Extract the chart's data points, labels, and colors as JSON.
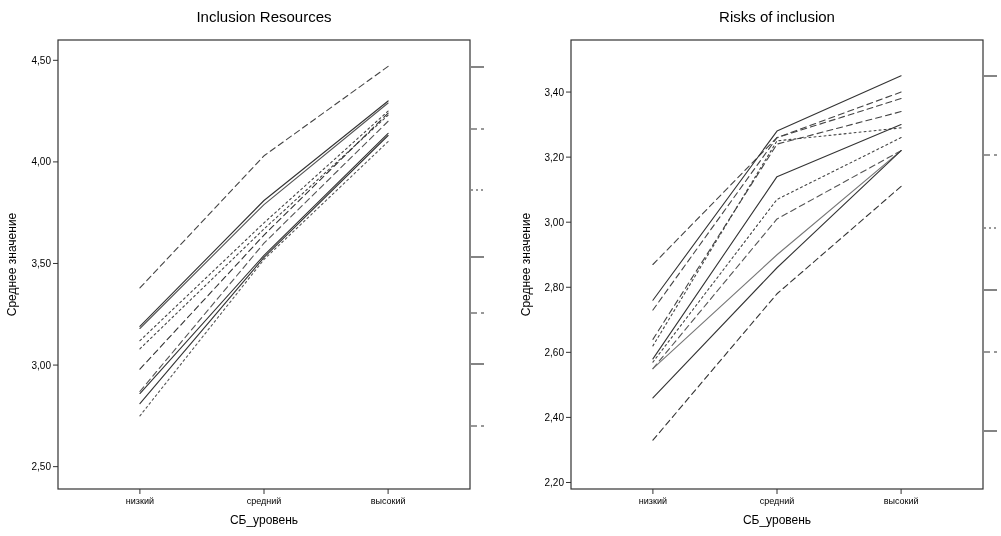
{
  "chart_data": [
    {
      "type": "line",
      "title": "Inclusion Resources",
      "xlabel": "СБ_уровень",
      "ylabel": "Среднее значение",
      "categories": [
        "низкий",
        "средний",
        "высокий"
      ],
      "ylim": [
        2.39,
        4.6
      ],
      "yticks": [
        {
          "value": 2.5,
          "label": "2,50"
        },
        {
          "value": 3.0,
          "label": "3,00"
        },
        {
          "value": 3.5,
          "label": "3,50"
        },
        {
          "value": 4.0,
          "label": "4,00"
        },
        {
          "value": 4.5,
          "label": "4,50"
        }
      ],
      "grid": false,
      "series": [
        {
          "color": "#444444",
          "line_style": "dashed",
          "values": [
            3.38,
            4.03,
            4.47
          ]
        },
        {
          "color": "#333333",
          "line_style": "solid",
          "values": [
            3.19,
            3.81,
            4.3
          ]
        },
        {
          "color": "#555555",
          "line_style": "solid",
          "values": [
            3.18,
            3.79,
            4.29
          ]
        },
        {
          "color": "#444444",
          "line_style": "dotted",
          "values": [
            3.12,
            3.7,
            4.25
          ]
        },
        {
          "color": "#444444",
          "line_style": "dotted",
          "values": [
            3.08,
            3.67,
            4.23
          ]
        },
        {
          "color": "#333333",
          "line_style": "dashed",
          "values": [
            2.98,
            3.64,
            4.24
          ]
        },
        {
          "color": "#555555",
          "line_style": "dashed",
          "values": [
            2.87,
            3.6,
            4.2
          ]
        },
        {
          "color": "#333333",
          "line_style": "solid",
          "values": [
            2.86,
            3.54,
            4.14
          ]
        },
        {
          "color": "#333333",
          "line_style": "solid",
          "values": [
            2.81,
            3.53,
            4.13
          ]
        },
        {
          "color": "#555555",
          "line_style": "dotted",
          "values": [
            2.75,
            3.52,
            4.1
          ]
        }
      ]
    },
    {
      "type": "line",
      "title": "Risks of inclusion",
      "xlabel": "СБ_уровень",
      "ylabel": "Среднее значение",
      "categories": [
        "низкий",
        "средний",
        "высокий"
      ],
      "ylim": [
        2.18,
        3.56
      ],
      "yticks": [
        {
          "value": 2.2,
          "label": "2,20"
        },
        {
          "value": 2.4,
          "label": "2,40"
        },
        {
          "value": 2.6,
          "label": "2,60"
        },
        {
          "value": 2.8,
          "label": "2,80"
        },
        {
          "value": 3.0,
          "label": "3,00"
        },
        {
          "value": 3.2,
          "label": "3,20"
        },
        {
          "value": 3.4,
          "label": "3,40"
        }
      ],
      "grid": false,
      "series": [
        {
          "color": "#444444",
          "line_style": "dashed",
          "values": [
            2.87,
            3.26,
            3.4
          ]
        },
        {
          "color": "#333333",
          "line_style": "solid",
          "values": [
            2.76,
            3.28,
            3.45
          ]
        },
        {
          "color": "#444444",
          "line_style": "dashed",
          "values": [
            2.73,
            3.26,
            3.38
          ]
        },
        {
          "color": "#444444",
          "line_style": "dashed",
          "values": [
            2.64,
            3.24,
            3.34
          ]
        },
        {
          "color": "#444444",
          "line_style": "dotted",
          "values": [
            2.62,
            3.25,
            3.29
          ]
        },
        {
          "color": "#333333",
          "line_style": "solid",
          "values": [
            2.58,
            3.14,
            3.3
          ]
        },
        {
          "color": "#444444",
          "line_style": "dotted",
          "values": [
            2.57,
            3.07,
            3.26
          ]
        },
        {
          "color": "#555555",
          "line_style": "dashed",
          "values": [
            2.55,
            3.01,
            3.22
          ]
        },
        {
          "color": "#777777",
          "line_style": "solid",
          "values": [
            2.55,
            2.9,
            3.22
          ]
        },
        {
          "color": "#333333",
          "line_style": "solid",
          "values": [
            2.46,
            2.86,
            3.22
          ]
        },
        {
          "color": "#333333",
          "line_style": "dashed",
          "values": [
            2.33,
            2.78,
            3.11
          ]
        }
      ]
    }
  ]
}
